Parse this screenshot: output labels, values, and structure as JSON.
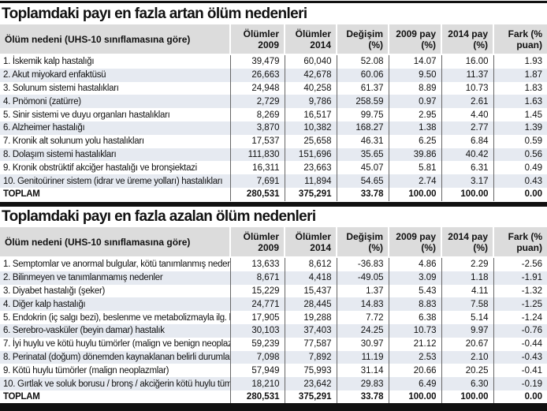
{
  "columns": [
    "Ölüm nedeni (UHS-10 sınıflamasına göre)",
    "Ölümler 2009",
    "Ölümler 2014",
    "Değişim (%)",
    "2009 pay (%)",
    "2014 pay (%)",
    "Fark (% puan)"
  ],
  "tables": [
    {
      "title": "Toplamdaki payı en fazla artan ölüm nedenleri",
      "rows": [
        [
          "1. İskemik kalp hastalığı",
          "39,479",
          "60,040",
          "52.08",
          "14.07",
          "16.00",
          "1.93"
        ],
        [
          "2. Akut miyokard enfaktüsü",
          "26,663",
          "42,678",
          "60.06",
          "9.50",
          "11.37",
          "1.87"
        ],
        [
          "3. Solunum sistemi hastalıkları",
          "24,948",
          "40,258",
          "61.37",
          "8.89",
          "10.73",
          "1.83"
        ],
        [
          "4. Pnömoni (zatürre)",
          "2,729",
          "9,786",
          "258.59",
          "0.97",
          "2.61",
          "1.63"
        ],
        [
          "5. Sinir sistemi ve duyu organları hastalıkları",
          "8,269",
          "16,517",
          "99.75",
          "2.95",
          "4.40",
          "1.45"
        ],
        [
          "6. Alzheimer hastalığı",
          "3,870",
          "10,382",
          "168.27",
          "1.38",
          "2.77",
          "1.39"
        ],
        [
          "7. Kronik alt solunum yolu hastalıkları",
          "17,537",
          "25,658",
          "46.31",
          "6.25",
          "6.84",
          "0.59"
        ],
        [
          "8. Dolaşım sistemi hastalıkları",
          "111,830",
          "151,696",
          "35.65",
          "39.86",
          "40.42",
          "0.56"
        ],
        [
          "9. Kronik obstrüktif akciğer hastalığı ve bronşiektazi",
          "16,311",
          "23,663",
          "45.07",
          "5.81",
          "6.31",
          "0.49"
        ],
        [
          "10. Genitoüriner sistem (idrar ve üreme yolları) hastalıkları",
          "7,691",
          "11,894",
          "54.65",
          "2.74",
          "3.17",
          "0.43"
        ]
      ],
      "total": [
        "TOPLAM",
        "280,531",
        "375,291",
        "33.78",
        "100.00",
        "100.00",
        "0.00"
      ]
    },
    {
      "title": "Toplamdaki payı en fazla azalan ölüm nedenleri",
      "rows": [
        [
          "1. Semptomlar ve anormal bulgular, kötü tanımlanmış nedenler",
          "13,633",
          "8,612",
          "-36.83",
          "4.86",
          "2.29",
          "-2.56"
        ],
        [
          "2. Bilinmeyen ve tanımlanmamış nedenler",
          "8,671",
          "4,418",
          "-49.05",
          "3.09",
          "1.18",
          "-1.91"
        ],
        [
          "3. Diyabet hastalığı (şeker)",
          "15,229",
          "15,437",
          "1.37",
          "5.43",
          "4.11",
          "-1.32"
        ],
        [
          "4. Diğer kalp hastalığı",
          "24,771",
          "28,445",
          "14.83",
          "8.83",
          "7.58",
          "-1.25"
        ],
        [
          "5. Endokrin (iç salgı bezi), beslenme ve metabolizmayla ilg. hast.",
          "17,905",
          "19,288",
          "7.72",
          "6.38",
          "5.14",
          "-1.24"
        ],
        [
          "6. Serebro-vasküler (beyin damar) hastalık",
          "30,103",
          "37,403",
          "24.25",
          "10.73",
          "9.97",
          "-0.76"
        ],
        [
          "7. İyi huylu ve kötü huylu tümörler (malign ve benign neoplazmlar)",
          "59,239",
          "77,587",
          "30.97",
          "21.12",
          "20.67",
          "-0.44"
        ],
        [
          "8. Perinatal (doğum) dönemden kaynaklanan belirli durumlar",
          "7,098",
          "7,892",
          "11.19",
          "2.53",
          "2.10",
          "-0.43"
        ],
        [
          "9. Kötü huylu tümörler (malign neoplazmlar)",
          "57,949",
          "75,993",
          "31.14",
          "20.66",
          "20.25",
          "-0.41"
        ],
        [
          "10. Gırtlak ve soluk borusu / bronş / akciğerin kötü huylu tümörü",
          "18,210",
          "23,642",
          "29.83",
          "6.49",
          "6.30",
          "-0.19"
        ]
      ],
      "total": [
        "TOPLAM",
        "280,531",
        "375,291",
        "33.78",
        "100.00",
        "100.00",
        "0.00"
      ]
    }
  ]
}
